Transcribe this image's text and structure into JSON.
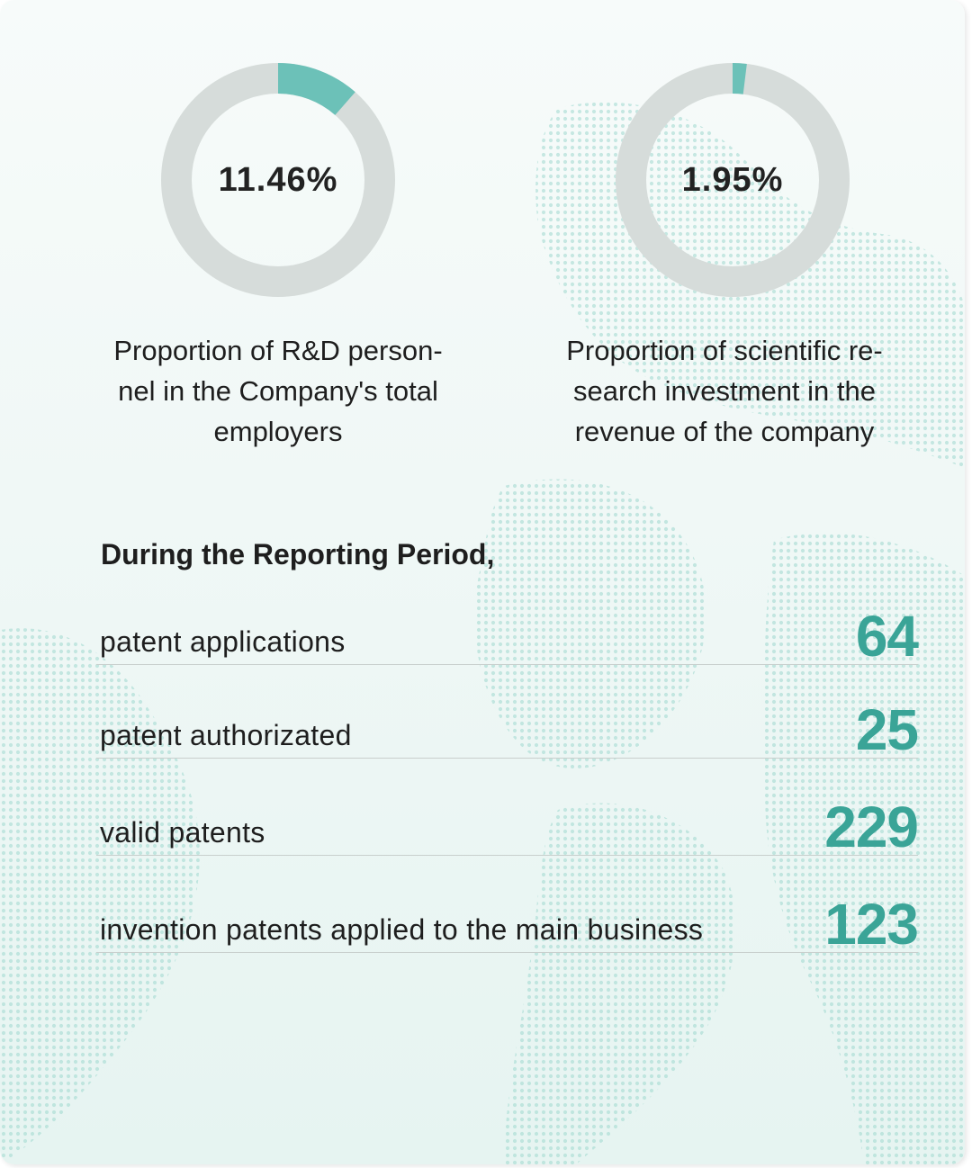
{
  "chart_data": {
    "type": "pie",
    "charts": [
      {
        "kind": "donut",
        "value_pct": 11.46,
        "value_label": "11.46%",
        "caption_lines": [
          "Proportion of R&D person-",
          "nel in the Company's total",
          "employers"
        ]
      },
      {
        "kind": "donut",
        "value_pct": 1.95,
        "value_label": "1.95%",
        "caption_lines": [
          "Proportion of scientific re-",
          "search investment in the",
          "revenue of the company"
        ]
      }
    ]
  },
  "colors": {
    "accent": "#6cc1b8",
    "track": "#d6dcda",
    "number": "#3aa497"
  },
  "period": {
    "title": "During the Reporting Period,",
    "stats": [
      {
        "label": "patent applications",
        "value": "64"
      },
      {
        "label": "patent authorizated",
        "value": "25"
      },
      {
        "label": "valid patents",
        "value": "229"
      },
      {
        "label": "invention patents applied to the main business",
        "value": "123"
      }
    ]
  }
}
